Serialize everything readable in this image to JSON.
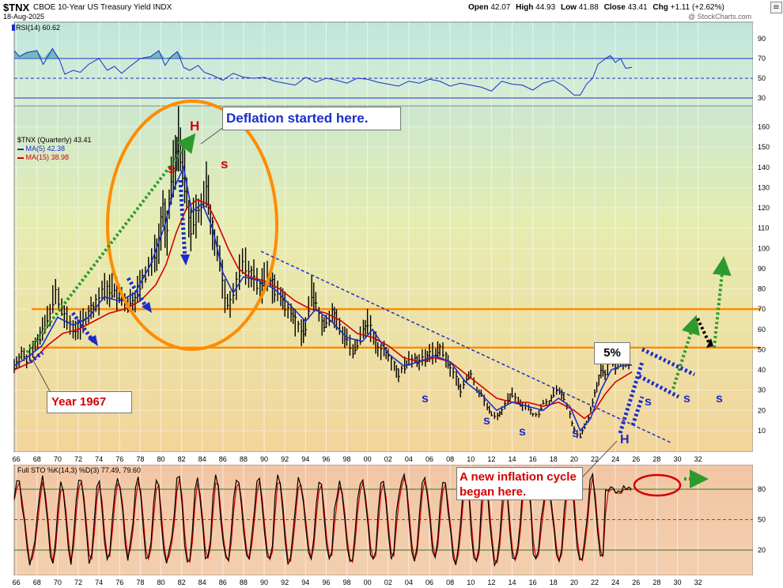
{
  "header": {
    "symbol": "$TNX",
    "name": "CBOE 10-Year US Treasury Yield INDX",
    "date": "18-Aug-2025",
    "watermark": "@ StockCharts.com",
    "open_label": "Open",
    "open": "42.07",
    "high_label": "High",
    "high": "44.93",
    "low_label": "Low",
    "low": "41.88",
    "close_label": "Close",
    "close": "43.41",
    "chg_label": "Chg",
    "chg": "+1.11 (+2.62%)"
  },
  "rsi": {
    "label": "RSI(14) 60.62",
    "value": 60.62,
    "levels": [
      70,
      50,
      30
    ],
    "ticks": [
      "90",
      "70",
      "50",
      "30"
    ],
    "series": [
      {
        "x": 1965.8,
        "y": 78
      },
      {
        "x": 1966.3,
        "y": 72
      },
      {
        "x": 1967,
        "y": 76
      },
      {
        "x": 1968,
        "y": 78
      },
      {
        "x": 1968.6,
        "y": 64
      },
      {
        "x": 1969.5,
        "y": 80
      },
      {
        "x": 1970.2,
        "y": 68
      },
      {
        "x": 1970.7,
        "y": 54
      },
      {
        "x": 1971.5,
        "y": 58
      },
      {
        "x": 1972.2,
        "y": 56
      },
      {
        "x": 1973,
        "y": 64
      },
      {
        "x": 1974,
        "y": 70
      },
      {
        "x": 1974.8,
        "y": 58
      },
      {
        "x": 1975.5,
        "y": 62
      },
      {
        "x": 1976.2,
        "y": 55
      },
      {
        "x": 1977,
        "y": 62
      },
      {
        "x": 1978,
        "y": 70
      },
      {
        "x": 1979,
        "y": 72
      },
      {
        "x": 1979.8,
        "y": 78
      },
      {
        "x": 1980.4,
        "y": 63
      },
      {
        "x": 1981,
        "y": 72
      },
      {
        "x": 1981.6,
        "y": 77
      },
      {
        "x": 1982.2,
        "y": 61
      },
      {
        "x": 1982.8,
        "y": 58
      },
      {
        "x": 1983.6,
        "y": 63
      },
      {
        "x": 1984.2,
        "y": 56
      },
      {
        "x": 1985,
        "y": 53
      },
      {
        "x": 1986,
        "y": 48
      },
      {
        "x": 1987,
        "y": 55
      },
      {
        "x": 1988,
        "y": 51
      },
      {
        "x": 1989,
        "y": 50
      },
      {
        "x": 1990,
        "y": 51
      },
      {
        "x": 1991,
        "y": 47
      },
      {
        "x": 1992,
        "y": 45
      },
      {
        "x": 1993,
        "y": 43
      },
      {
        "x": 1994,
        "y": 51
      },
      {
        "x": 1995,
        "y": 46
      },
      {
        "x": 1996,
        "y": 50
      },
      {
        "x": 1997,
        "y": 48
      },
      {
        "x": 1998,
        "y": 45
      },
      {
        "x": 1999,
        "y": 50
      },
      {
        "x": 2000,
        "y": 49
      },
      {
        "x": 2001,
        "y": 46
      },
      {
        "x": 2002,
        "y": 44
      },
      {
        "x": 2003,
        "y": 42
      },
      {
        "x": 2004,
        "y": 47
      },
      {
        "x": 2005,
        "y": 45
      },
      {
        "x": 2006,
        "y": 49
      },
      {
        "x": 2007,
        "y": 47
      },
      {
        "x": 2008,
        "y": 42
      },
      {
        "x": 2009,
        "y": 45
      },
      {
        "x": 2010,
        "y": 43
      },
      {
        "x": 2011,
        "y": 41
      },
      {
        "x": 2012,
        "y": 37
      },
      {
        "x": 2013,
        "y": 47
      },
      {
        "x": 2014,
        "y": 44
      },
      {
        "x": 2015,
        "y": 43
      },
      {
        "x": 2016,
        "y": 38
      },
      {
        "x": 2017,
        "y": 45
      },
      {
        "x": 2018,
        "y": 48
      },
      {
        "x": 2019,
        "y": 42
      },
      {
        "x": 2020,
        "y": 33
      },
      {
        "x": 2020.6,
        "y": 33
      },
      {
        "x": 2021.2,
        "y": 44
      },
      {
        "x": 2021.8,
        "y": 50
      },
      {
        "x": 2022.3,
        "y": 64
      },
      {
        "x": 2022.8,
        "y": 68
      },
      {
        "x": 2023.5,
        "y": 73
      },
      {
        "x": 2024,
        "y": 66
      },
      {
        "x": 2024.5,
        "y": 70
      },
      {
        "x": 2025,
        "y": 60
      },
      {
        "x": 2025.6,
        "y": 61
      }
    ]
  },
  "main": {
    "legend_title": "$TNX (Quarterly) 43.41",
    "ma5_label": "MA(5) 42.38",
    "ma15_label": "MA(15) 38.98",
    "y_ticks": [
      "160",
      "150",
      "140",
      "130",
      "120",
      "110",
      "100",
      "90",
      "80",
      "70",
      "60",
      "50",
      "40",
      "30",
      "20",
      "10"
    ],
    "horizontal_lines": [
      70,
      51
    ],
    "annotations": {
      "deflation": "Deflation started here.",
      "year1967": "Year 1967",
      "inflation": "A new inflation cycle began here.",
      "five_percent": "5%",
      "h_top": "H",
      "h_bottom": "H",
      "s_label": "s",
      "s_upper": "S"
    }
  },
  "x_axis": {
    "ticks": [
      "66",
      "68",
      "70",
      "72",
      "74",
      "76",
      "78",
      "80",
      "82",
      "84",
      "86",
      "88",
      "90",
      "92",
      "94",
      "96",
      "98",
      "00",
      "02",
      "04",
      "06",
      "08",
      "10",
      "12",
      "14",
      "16",
      "18",
      "20",
      "22",
      "24",
      "26",
      "28",
      "30",
      "32"
    ]
  },
  "sto": {
    "label": "Full STO %K(14,3) %D(3) 77.49, 79.60",
    "k": 77.49,
    "d": 79.6,
    "levels": [
      80,
      50,
      20
    ],
    "ticks": [
      "80",
      "50",
      "20"
    ]
  },
  "colors": {
    "price_bar": "#000000",
    "ma5": "#1a2ecc",
    "ma15": "#d40000",
    "orange": "#ff8c00",
    "green_arrow": "#2e9a2e",
    "blue_arrow": "#1a2ecc",
    "red_text": "#d40000"
  },
  "chart_data": {
    "type": "line",
    "title": "$TNX CBOE 10-Year US Treasury Yield INDX",
    "xlabel": "",
    "ylabel": "",
    "ylim": [
      0,
      175
    ],
    "series": [
      {
        "name": "$TNX (Quarterly)",
        "values": [
          [
            1965.8,
            42
          ],
          [
            1966.5,
            48
          ],
          [
            1967,
            45
          ],
          [
            1967.6,
            52
          ],
          [
            1968.3,
            56
          ],
          [
            1969,
            65
          ],
          [
            1969.8,
            78
          ],
          [
            1970.4,
            70
          ],
          [
            1970.9,
            64
          ],
          [
            1971.5,
            60
          ],
          [
            1972.2,
            62
          ],
          [
            1973,
            68
          ],
          [
            1973.7,
            72
          ],
          [
            1974.3,
            78
          ],
          [
            1974.8,
            80
          ],
          [
            1975.5,
            79
          ],
          [
            1976.2,
            75
          ],
          [
            1976.8,
            72
          ],
          [
            1977.5,
            76
          ],
          [
            1978.2,
            84
          ],
          [
            1978.8,
            90
          ],
          [
            1979.4,
            96
          ],
          [
            1979.8,
            104
          ],
          [
            1980.2,
            120
          ],
          [
            1980.6,
            106
          ],
          [
            1981,
            134
          ],
          [
            1981.4,
            145
          ],
          [
            1981.7,
            152
          ],
          [
            1982.1,
            140
          ],
          [
            1982.5,
            126
          ],
          [
            1982.9,
            108
          ],
          [
            1983.4,
            118
          ],
          [
            1983.9,
            120
          ],
          [
            1984.4,
            130
          ],
          [
            1984.8,
            115
          ],
          [
            1985.2,
            105
          ],
          [
            1985.7,
            94
          ],
          [
            1986.2,
            76
          ],
          [
            1986.7,
            72
          ],
          [
            1987.3,
            84
          ],
          [
            1987.9,
            92
          ],
          [
            1988.5,
            88
          ],
          [
            1989,
            86
          ],
          [
            1989.6,
            80
          ],
          [
            1990,
            84
          ],
          [
            1990.6,
            85
          ],
          [
            1991,
            80
          ],
          [
            1991.6,
            76
          ],
          [
            1992,
            72
          ],
          [
            1992.6,
            70
          ],
          [
            1993,
            64
          ],
          [
            1993.6,
            58
          ],
          [
            1994,
            62
          ],
          [
            1994.6,
            78
          ],
          [
            1995,
            74
          ],
          [
            1995.6,
            62
          ],
          [
            1996,
            64
          ],
          [
            1996.6,
            68
          ],
          [
            1997,
            64
          ],
          [
            1997.6,
            58
          ],
          [
            1998,
            56
          ],
          [
            1998.6,
            48
          ],
          [
            1999,
            52
          ],
          [
            1999.6,
            60
          ],
          [
            2000,
            64
          ],
          [
            2000.6,
            56
          ],
          [
            2001,
            50
          ],
          [
            2001.6,
            50
          ],
          [
            2002,
            48
          ],
          [
            2002.6,
            42
          ],
          [
            2003,
            38
          ],
          [
            2003.6,
            42
          ],
          [
            2004,
            44
          ],
          [
            2004.6,
            46
          ],
          [
            2005,
            44
          ],
          [
            2005.6,
            46
          ],
          [
            2006,
            48
          ],
          [
            2006.6,
            48
          ],
          [
            2007,
            50
          ],
          [
            2007.6,
            46
          ],
          [
            2008,
            40
          ],
          [
            2008.6,
            36
          ],
          [
            2009,
            30
          ],
          [
            2009.6,
            36
          ],
          [
            2010,
            38
          ],
          [
            2010.6,
            30
          ],
          [
            2011,
            28
          ],
          [
            2011.6,
            22
          ],
          [
            2012,
            18
          ],
          [
            2012.6,
            17
          ],
          [
            2013,
            20
          ],
          [
            2013.6,
            26
          ],
          [
            2014,
            28
          ],
          [
            2014.6,
            24
          ],
          [
            2015,
            22
          ],
          [
            2015.6,
            22
          ],
          [
            2016,
            18
          ],
          [
            2016.6,
            18
          ],
          [
            2017,
            24
          ],
          [
            2017.6,
            24
          ],
          [
            2018,
            28
          ],
          [
            2018.6,
            30
          ],
          [
            2019,
            26
          ],
          [
            2019.6,
            18
          ],
          [
            2020,
            10
          ],
          [
            2020.6,
            7
          ],
          [
            2021,
            12
          ],
          [
            2021.4,
            16
          ],
          [
            2021.8,
            24
          ],
          [
            2022.2,
            32
          ],
          [
            2022.6,
            40
          ],
          [
            2023,
            38
          ],
          [
            2023.5,
            46
          ],
          [
            2024,
            42
          ],
          [
            2024.5,
            44
          ],
          [
            2025,
            44
          ],
          [
            2025.6,
            43.41
          ]
        ]
      },
      {
        "name": "MA(5)",
        "values": [
          [
            1965.8,
            42
          ],
          [
            1967,
            46
          ],
          [
            1968.5,
            52
          ],
          [
            1970,
            66
          ],
          [
            1971.5,
            62
          ],
          [
            1973,
            66
          ],
          [
            1974.5,
            76
          ],
          [
            1976,
            74
          ],
          [
            1977.5,
            78
          ],
          [
            1979,
            92
          ],
          [
            1980.3,
            110
          ],
          [
            1981.3,
            130
          ],
          [
            1982.2,
            140
          ],
          [
            1983,
            118
          ],
          [
            1984,
            122
          ],
          [
            1985,
            110
          ],
          [
            1986,
            88
          ],
          [
            1987,
            78
          ],
          [
            1988,
            86
          ],
          [
            1989.5,
            84
          ],
          [
            1991,
            80
          ],
          [
            1992.5,
            72
          ],
          [
            1994,
            64
          ],
          [
            1995,
            70
          ],
          [
            1996.5,
            64
          ],
          [
            1998,
            56
          ],
          [
            1999.5,
            54
          ],
          [
            2000.5,
            60
          ],
          [
            2002,
            48
          ],
          [
            2003.5,
            42
          ],
          [
            2005,
            44
          ],
          [
            2006.5,
            47
          ],
          [
            2008,
            44
          ],
          [
            2009.5,
            34
          ],
          [
            2011,
            28
          ],
          [
            2012.5,
            20
          ],
          [
            2014,
            24
          ],
          [
            2015.5,
            22
          ],
          [
            2017,
            20
          ],
          [
            2018.5,
            26
          ],
          [
            2019.6,
            22
          ],
          [
            2020.6,
            10
          ],
          [
            2021.6,
            16
          ],
          [
            2022.6,
            30
          ],
          [
            2023.6,
            40
          ],
          [
            2024.6,
            42
          ],
          [
            2025.6,
            42.38
          ]
        ]
      },
      {
        "name": "MA(15)",
        "values": [
          [
            1965.8,
            40
          ],
          [
            1967.5,
            44
          ],
          [
            1969,
            52
          ],
          [
            1970.5,
            58
          ],
          [
            1972,
            60
          ],
          [
            1973.5,
            64
          ],
          [
            1975,
            68
          ],
          [
            1976.5,
            70
          ],
          [
            1978,
            74
          ],
          [
            1979.5,
            82
          ],
          [
            1980.5,
            92
          ],
          [
            1981.5,
            108
          ],
          [
            1982.5,
            120
          ],
          [
            1983.5,
            124
          ],
          [
            1984.5,
            122
          ],
          [
            1985.5,
            112
          ],
          [
            1986.5,
            100
          ],
          [
            1987.5,
            90
          ],
          [
            1988.5,
            86
          ],
          [
            1990,
            84
          ],
          [
            1991.5,
            80
          ],
          [
            1993,
            74
          ],
          [
            1994.5,
            70
          ],
          [
            1996,
            68
          ],
          [
            1997.5,
            64
          ],
          [
            1999,
            58
          ],
          [
            2000.5,
            56
          ],
          [
            2002,
            52
          ],
          [
            2003.5,
            46
          ],
          [
            2005,
            44
          ],
          [
            2006.5,
            46
          ],
          [
            2008,
            44
          ],
          [
            2009.5,
            38
          ],
          [
            2011,
            32
          ],
          [
            2012.5,
            26
          ],
          [
            2014,
            24
          ],
          [
            2015.5,
            24
          ],
          [
            2017,
            22
          ],
          [
            2018.5,
            24
          ],
          [
            2020,
            20
          ],
          [
            2021,
            16
          ],
          [
            2022,
            20
          ],
          [
            2023,
            28
          ],
          [
            2024,
            34
          ],
          [
            2025.6,
            38.98
          ]
        ]
      }
    ]
  }
}
